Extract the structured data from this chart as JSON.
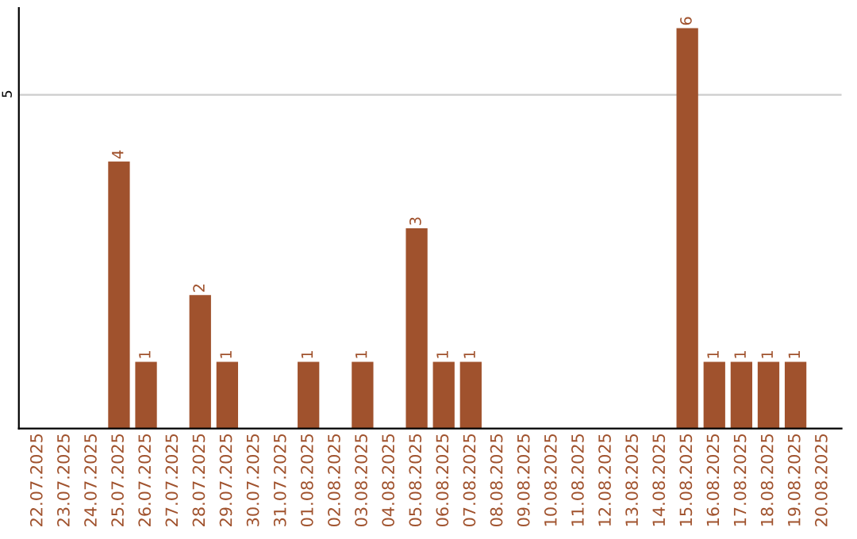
{
  "chart_data": {
    "type": "bar",
    "categories": [
      "22.07.2025",
      "23.07.2025",
      "24.07.2025",
      "25.07.2025",
      "26.07.2025",
      "27.07.2025",
      "28.07.2025",
      "29.07.2025",
      "30.07.2025",
      "31.07.2025",
      "01.08.2025",
      "02.08.2025",
      "03.08.2025",
      "04.08.2025",
      "05.08.2025",
      "06.08.2025",
      "07.08.2025",
      "08.08.2025",
      "09.08.2025",
      "10.08.2025",
      "11.08.2025",
      "12.08.2025",
      "13.08.2025",
      "14.08.2025",
      "15.08.2025",
      "16.08.2025",
      "17.08.2025",
      "18.08.2025",
      "19.08.2025",
      "20.08.2025"
    ],
    "values": [
      0,
      0,
      0,
      4,
      1,
      0,
      2,
      1,
      0,
      0,
      1,
      0,
      1,
      0,
      3,
      1,
      1,
      0,
      0,
      0,
      0,
      0,
      0,
      0,
      6,
      1,
      1,
      1,
      1,
      0
    ],
    "value_labels": [
      null,
      null,
      null,
      "4",
      "1",
      null,
      "2",
      "1",
      null,
      null,
      "1",
      null,
      "1",
      null,
      "3",
      "1",
      "1",
      null,
      null,
      null,
      null,
      null,
      null,
      null,
      "6",
      "1",
      "1",
      "1",
      "1",
      null
    ],
    "color": "#a0522d",
    "ylim": [
      0,
      6.3
    ],
    "yticks": [
      5
    ],
    "grid": "y",
    "legend": false
  }
}
